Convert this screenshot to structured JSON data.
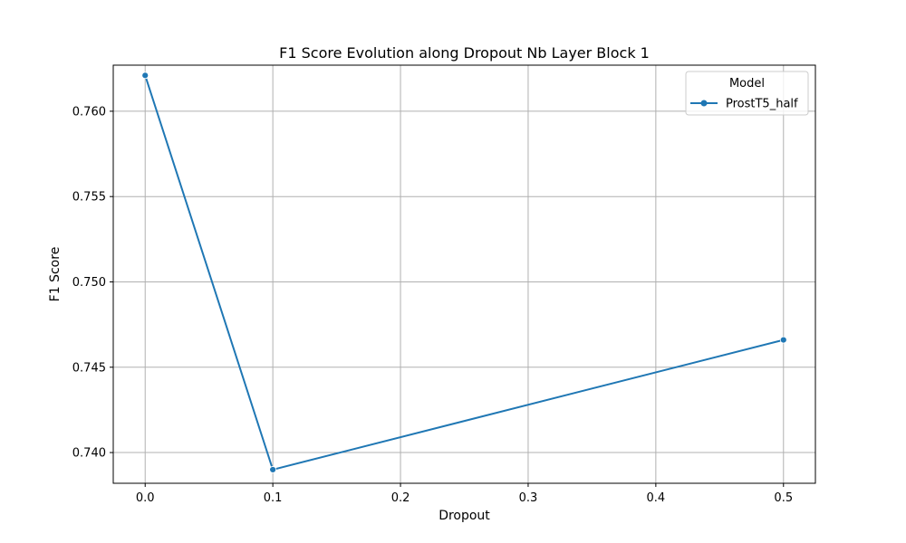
{
  "chart_data": {
    "type": "line",
    "title": "F1 Score Evolution along Dropout Nb Layer Block 1",
    "xlabel": "Dropout",
    "ylabel": "F1 Score",
    "xlim": [
      -0.025,
      0.525
    ],
    "ylim": [
      0.7382,
      0.7627
    ],
    "xticks": [
      0.0,
      0.1,
      0.2,
      0.3,
      0.4,
      0.5
    ],
    "xtick_labels": [
      "0.0",
      "0.1",
      "0.2",
      "0.3",
      "0.4",
      "0.5"
    ],
    "yticks": [
      0.74,
      0.745,
      0.75,
      0.755,
      0.76
    ],
    "ytick_labels": [
      "0.740",
      "0.745",
      "0.750",
      "0.755",
      "0.760"
    ],
    "grid": true,
    "legend": {
      "title": "Model",
      "position": "top-right"
    },
    "series": [
      {
        "name": "ProstT5_half",
        "color": "#1f77b4",
        "marker": "circle",
        "x": [
          0.0,
          0.1,
          0.5
        ],
        "y": [
          0.7621,
          0.739,
          0.7466
        ]
      }
    ]
  }
}
